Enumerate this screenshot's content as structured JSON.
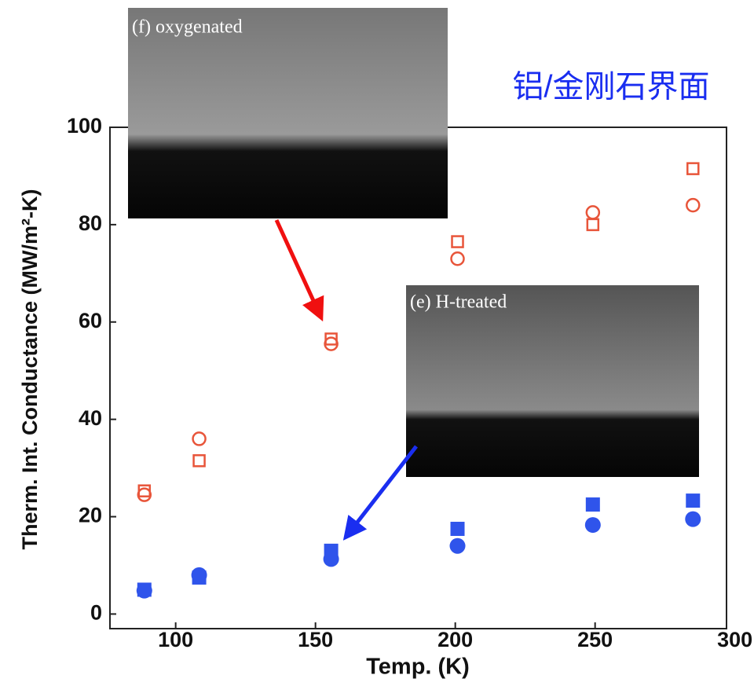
{
  "chart_data": {
    "type": "scatter",
    "title": "铝/金刚石界面",
    "x_label": "Temp. (K)",
    "y_label": "Therm. Int. Conductance (MW/m²-K)",
    "annotations": [
      "(f) oxygenated",
      "(e) H-treated"
    ],
    "xlim": [
      76.5,
      297
    ],
    "ylim": [
      -3,
      100
    ],
    "xticks": [
      100,
      150,
      200,
      250,
      300
    ],
    "yticks": [
      0,
      20,
      40,
      60,
      80,
      100
    ],
    "series": [
      {
        "marker": "circle",
        "filled": false,
        "color": "#e8553a",
        "x": [
          88.8,
          108.4,
          155.6,
          200.8,
          249.2,
          285
        ],
        "values": [
          24.5,
          36,
          55.5,
          73,
          82.5,
          84
        ]
      },
      {
        "marker": "square",
        "filled": false,
        "color": "#e8553a",
        "x": [
          88.8,
          108.4,
          155.6,
          200.8,
          249.2,
          285
        ],
        "values": [
          25.3,
          31.5,
          56.5,
          76.5,
          80,
          91.5
        ]
      },
      {
        "marker": "square",
        "filled": true,
        "color": "#2f54eb",
        "x": [
          88.8,
          108.4,
          155.6,
          200.8,
          249.2,
          285
        ],
        "values": [
          5,
          7.5,
          13,
          17.5,
          22.5,
          23.3
        ]
      },
      {
        "marker": "circle",
        "filled": true,
        "color": "#2f54eb",
        "x": [
          88.8,
          108.4,
          155.6,
          200.8,
          249.2,
          285
        ],
        "values": [
          4.8,
          8,
          11.3,
          14,
          18.3,
          19.5
        ]
      }
    ]
  }
}
